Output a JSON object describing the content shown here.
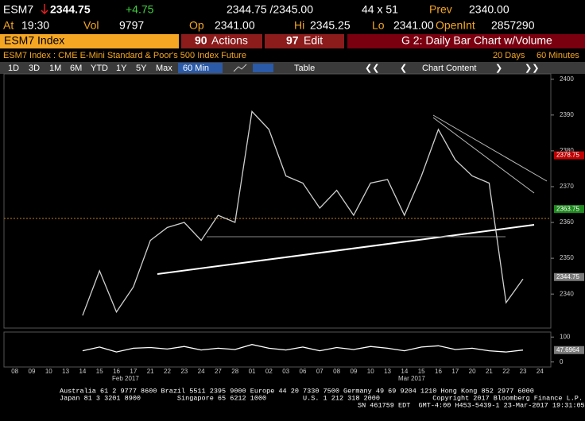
{
  "header": {
    "ticker": "ESM7",
    "last": "2344.75",
    "change": "+4.75",
    "bid_ask": "2344.75 /2345.00",
    "size": "44 x 51",
    "prev_label": "Prev",
    "prev": "2340.00",
    "at_label": "At",
    "time": "19:30",
    "vol_label": "Vol",
    "vol": "9797",
    "op_label": "Op",
    "op": "2341.00",
    "hi_label": "Hi",
    "hi": "2345.25",
    "lo_label": "Lo",
    "lo": "2341.00",
    "openint_label": "OpenInt",
    "openint": "2857290"
  },
  "menu": {
    "security": "ESM7 Index",
    "actions_num": "90",
    "actions": "Actions",
    "edit_num": "97",
    "edit": "Edit",
    "chart_title": "G 2: Daily Bar Chart w/Volume"
  },
  "subheader": {
    "description": "ESM7 Index : CME E-Mini Standard & Poor's 500 Index Future",
    "range": "20 Days",
    "period": "60 Minutes"
  },
  "toolbar": {
    "periods": [
      "1D",
      "3D",
      "1M",
      "6M",
      "YTD",
      "1Y",
      "5Y",
      "Max"
    ],
    "interval": "60 Min",
    "table": "Table",
    "chart_content": "Chart Content"
  },
  "chart_data": [
    {
      "type": "line",
      "color": "#d0d0d0",
      "categories": [
        "08",
        "09",
        "10",
        "13",
        "14",
        "15",
        "16",
        "17",
        "21",
        "22",
        "23",
        "24",
        "27",
        "28",
        "01",
        "02",
        "03",
        "06",
        "07",
        "08",
        "09",
        "10",
        "13",
        "14",
        "15",
        "16",
        "17",
        "20",
        "21",
        "22",
        "23",
        "24"
      ],
      "values": [
        null,
        null,
        null,
        null,
        2334,
        2346.5,
        2335,
        2342,
        2355,
        2358.6,
        2360,
        2355,
        2362,
        2360,
        2391,
        2386,
        2373,
        2371,
        2364,
        2369,
        2362,
        2371,
        2372,
        2362,
        2373,
        2386,
        2377.5,
        2373,
        2371,
        2337.6,
        2344.2,
        null
      ],
      "month_labels": [
        "Feb 2017",
        "Mar 2017"
      ],
      "ylim": [
        2330.5,
        2401.5
      ],
      "yticks": [
        2340,
        2350,
        2360,
        2370,
        2380,
        2390,
        2400
      ],
      "price_labels": [
        {
          "value": 2378.75,
          "label": "2378.75",
          "color": "#c00000"
        },
        {
          "value": 2363.75,
          "label": "2363.75",
          "color": "#1f8a1f"
        },
        {
          "value": 2344.75,
          "label": "2344.75",
          "color": "#7a7a7a"
        }
      ]
    },
    {
      "type": "line",
      "color": "#ffffff",
      "values": [
        null,
        null,
        null,
        null,
        45,
        60,
        40,
        55,
        58,
        52,
        62,
        48,
        55,
        50,
        70,
        55,
        48,
        60,
        45,
        58,
        50,
        62,
        55,
        45,
        60,
        65,
        50,
        55,
        45,
        40,
        47.6964,
        null
      ],
      "ylim": [
        -20,
        120
      ],
      "yticks": [
        0,
        100
      ],
      "price_labels": [
        {
          "value": 47.6964,
          "label": "47.6964",
          "color": "#7a7a7a"
        }
      ]
    }
  ],
  "footer": {
    "lines": [
      "Australia 61 2 9777 8600 Brazil 5511 2395 9000 Europe 44 20 7330 7500 Germany 49 69 9204 1210 Hong Kong 852 2977 6000",
      "Japan 81 3 3201 8900         Singapore 65 6212 1000         U.S. 1 212 318 2000             Copyright 2017 Bloomberg Finance L.P.",
      "SN 461759 EDT  GMT-4:00 H453-5439-1 23-Mar-2017 19:31:05"
    ]
  }
}
